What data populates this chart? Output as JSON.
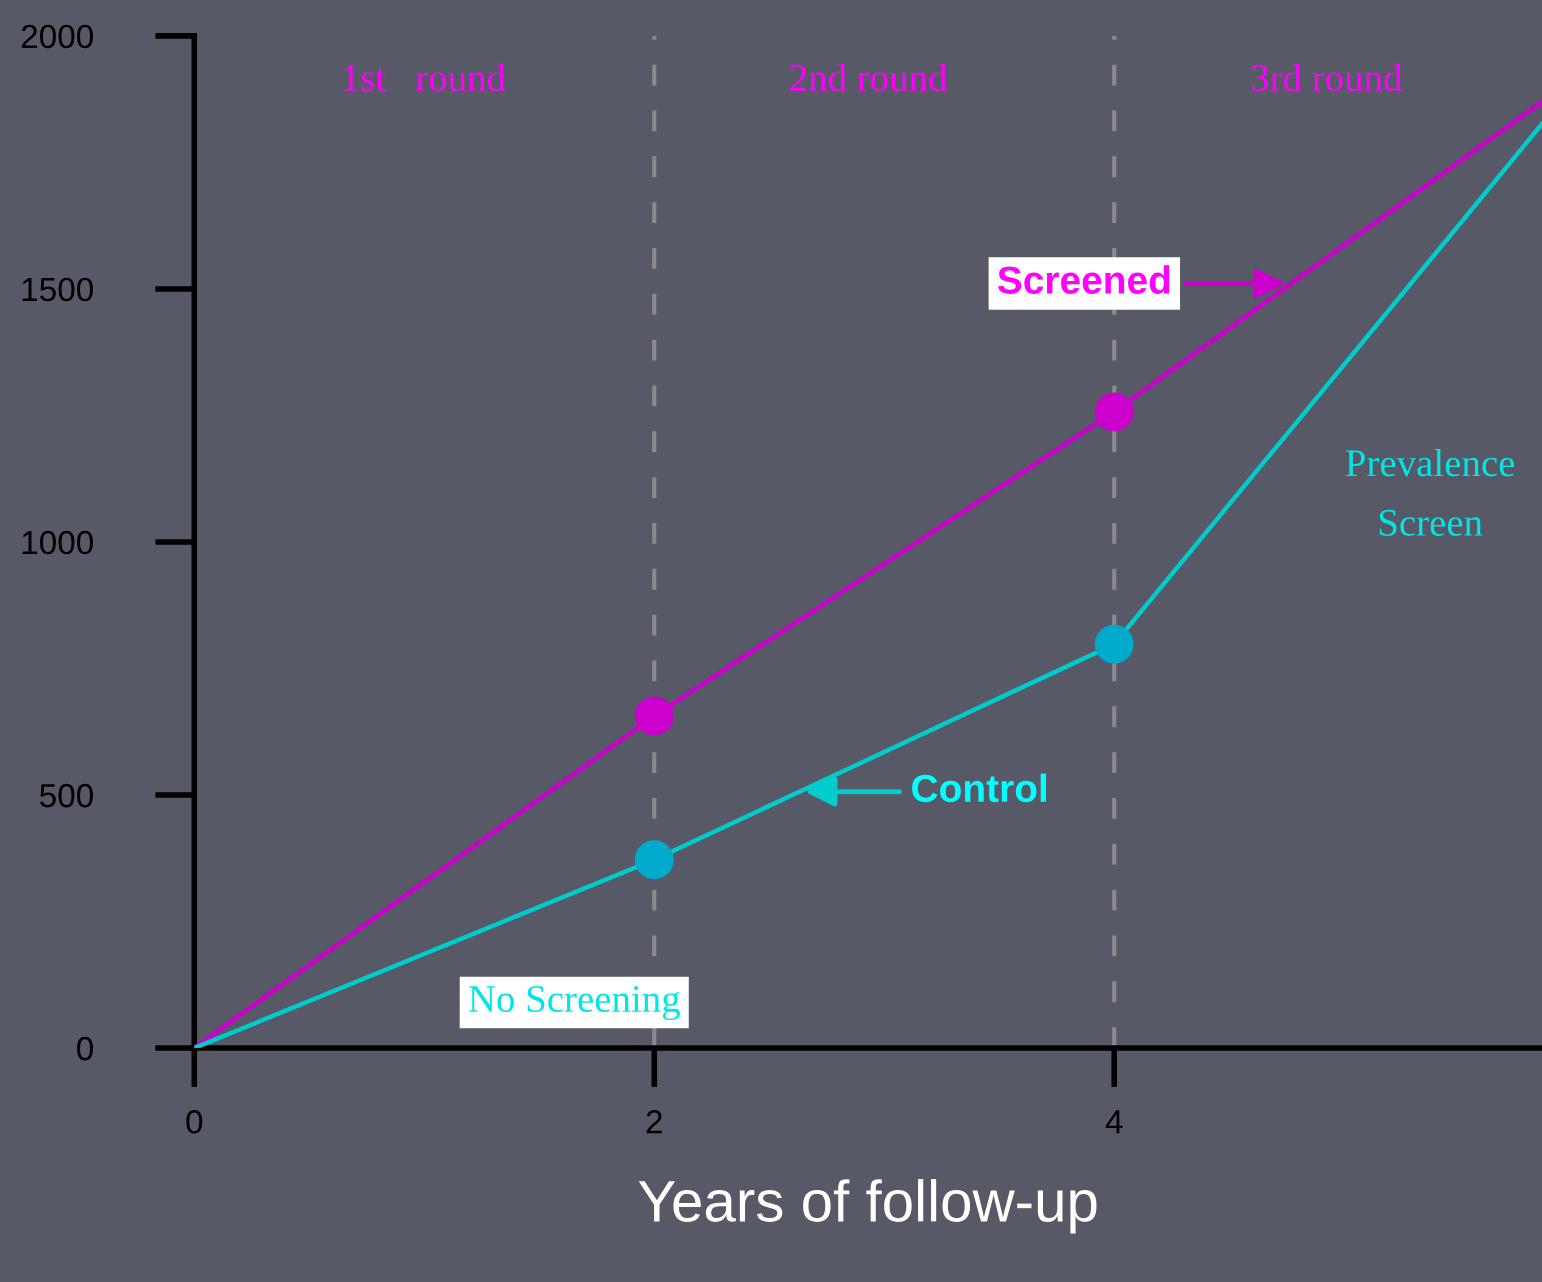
{
  "chart_data": {
    "type": "line",
    "xlabel": "Years of follow-up",
    "x": [
      0,
      2,
      4,
      5.86
    ],
    "series": [
      {
        "name": "Screened",
        "color": "#cc00cc",
        "values": [
          0,
          656,
          1257,
          1870
        ]
      },
      {
        "name": "Control",
        "color": "#00cccc",
        "values": [
          0,
          372,
          798,
          1826
        ]
      },
      {
        "type": "scatter",
        "color": "#cc00cc",
        "values": [
          null,
          656,
          1257,
          null
        ]
      },
      {
        "type": "scatter",
        "color": "#00aacc",
        "values": [
          null,
          372,
          798,
          null
        ]
      }
    ],
    "xlim": [
      0,
      5.86
    ],
    "ylim": [
      0,
      2000
    ],
    "xticks": [
      0,
      2,
      4
    ],
    "yticks": [
      0,
      500,
      1000,
      1500,
      2000
    ],
    "grid": false,
    "ref_lines": [
      {
        "axis": "x",
        "value": 2,
        "color": "#8a8a8a",
        "line_style": "dashed"
      },
      {
        "axis": "x",
        "value": 4,
        "color": "#8a8a8a",
        "line_style": "dashed"
      }
    ],
    "annotations": [
      "1st   round",
      "2nd round",
      "3rd round",
      "Prevalence\nScreen",
      "No Screening"
    ]
  }
}
